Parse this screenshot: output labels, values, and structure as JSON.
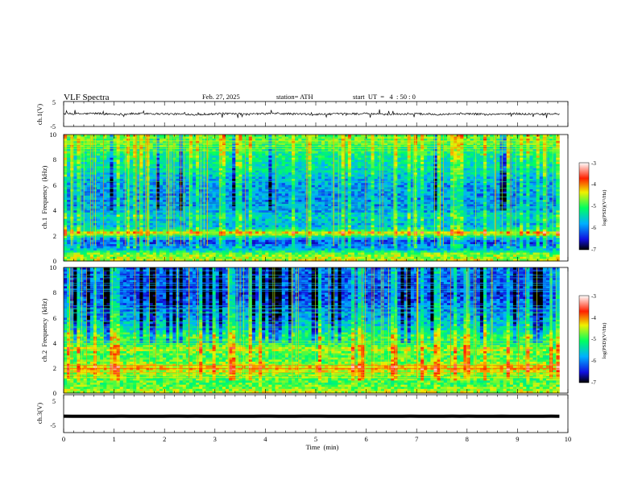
{
  "header": {
    "title": "VLF  Spectra",
    "date": "Feb. 27, 2025",
    "station": "station= ATH",
    "start_ut": "start  UT  =   4  : 50 : 0"
  },
  "chart_data": [
    {
      "panel": "ch1-waveform",
      "type": "line",
      "ylabel": "ch.1(V)",
      "ylim": [
        -5,
        5
      ],
      "yticks": [
        "5",
        "-5"
      ],
      "xlim": [
        0,
        10
      ],
      "duration_min": 9.83,
      "baseline": 0.1,
      "noise_amplitude": 0.8,
      "series": [
        {
          "values": [
            0.1,
            0.1,
            0.2,
            0.0,
            -0.1,
            0.1,
            0.2,
            0.1,
            0.0,
            -0.1,
            -0.2,
            0.0,
            0.1,
            0.0,
            -0.1,
            0.1,
            0.2,
            0.1,
            0.0,
            -0.2,
            -0.1,
            0.0,
            0.1,
            0.1,
            0.0,
            -0.1,
            0.0,
            0.1,
            0.0,
            -0.1,
            0.0,
            0.1,
            0.0,
            -0.2,
            0.0,
            0.1,
            0.0,
            -0.1,
            0.0,
            0.1
          ]
        }
      ],
      "color": "#000000"
    },
    {
      "panel": "ch1-spectrogram",
      "type": "heatmap",
      "ylabel": "ch.1  Frequency  (kHz)",
      "ylim": [
        0,
        10
      ],
      "yticks": [
        "0",
        "2",
        "4",
        "6",
        "8",
        "10"
      ],
      "xlim": [
        0,
        10
      ],
      "duration_min": 9.83,
      "colorbar": {
        "label": "log(PSD)(V²/Hz)",
        "range": [
          -7,
          -3
        ],
        "ticks": [
          "-3",
          "-4",
          "-5",
          "-6",
          "-7"
        ],
        "colors": [
          "#000000",
          "#1010e0",
          "#00b0ff",
          "#00ff60",
          "#f0f000",
          "#ff2000",
          "#ffffff"
        ]
      },
      "band_levels": [
        {
          "f": 0.0,
          "v": 0.62
        },
        {
          "f": 0.5,
          "v": 0.58
        },
        {
          "f": 1.0,
          "v": 0.3
        },
        {
          "f": 1.5,
          "v": 0.18
        },
        {
          "f": 2.0,
          "v": 0.4
        },
        {
          "f": 2.2,
          "v": 0.72
        },
        {
          "f": 2.5,
          "v": 0.38
        },
        {
          "f": 3.0,
          "v": 0.3
        },
        {
          "f": 3.5,
          "v": 0.38
        },
        {
          "f": 4.0,
          "v": 0.28
        },
        {
          "f": 5.0,
          "v": 0.26
        },
        {
          "f": 6.0,
          "v": 0.28
        },
        {
          "f": 7.0,
          "v": 0.36
        },
        {
          "f": 8.0,
          "v": 0.42
        },
        {
          "f": 9.0,
          "v": 0.5
        },
        {
          "f": 10.0,
          "v": 0.54
        }
      ],
      "sferic_density": 0.45,
      "dark_burst_density": 0.15
    },
    {
      "panel": "ch2-spectrogram",
      "type": "heatmap",
      "ylabel": "ch.2  Frequency  (kHz)",
      "ylim": [
        0,
        10
      ],
      "yticks": [
        "0",
        "2",
        "4",
        "6",
        "8",
        "10"
      ],
      "xlim": [
        0,
        10
      ],
      "duration_min": 9.83,
      "colorbar": {
        "label": "log(PSD)(V²/Hz)",
        "range": [
          -7,
          -3
        ],
        "ticks": [
          "-3",
          "-4",
          "-5",
          "-6",
          "-7"
        ],
        "colors": [
          "#000000",
          "#1010e0",
          "#00b0ff",
          "#00ff60",
          "#f0f000",
          "#ff2000",
          "#ffffff"
        ]
      },
      "band_levels": [
        {
          "f": 0.0,
          "v": 0.62
        },
        {
          "f": 0.5,
          "v": 0.55
        },
        {
          "f": 1.0,
          "v": 0.52
        },
        {
          "f": 1.5,
          "v": 0.56
        },
        {
          "f": 2.0,
          "v": 0.7
        },
        {
          "f": 2.5,
          "v": 0.55
        },
        {
          "f": 3.0,
          "v": 0.5
        },
        {
          "f": 3.5,
          "v": 0.62
        },
        {
          "f": 4.0,
          "v": 0.45
        },
        {
          "f": 4.5,
          "v": 0.52
        },
        {
          "f": 5.0,
          "v": 0.4
        },
        {
          "f": 6.0,
          "v": 0.3
        },
        {
          "f": 7.0,
          "v": 0.22
        },
        {
          "f": 8.0,
          "v": 0.18
        },
        {
          "f": 9.0,
          "v": 0.2
        },
        {
          "f": 10.0,
          "v": 0.22
        }
      ],
      "sferic_density": 0.4,
      "dark_burst_density": 0.45
    },
    {
      "panel": "ch3-waveform",
      "type": "line",
      "ylabel": "ch.3(V)",
      "ylim": [
        -5,
        5
      ],
      "yticks": [
        "5",
        "-5"
      ],
      "xlim": [
        0,
        10
      ],
      "duration_min": 9.83,
      "baseline": -1.0,
      "noise_amplitude": 0.05,
      "xlabel": "Time  (min)",
      "xticks": [
        "0",
        "1",
        "2",
        "3",
        "4",
        "5",
        "6",
        "7",
        "8",
        "9",
        "10"
      ],
      "color": "#000000"
    }
  ]
}
